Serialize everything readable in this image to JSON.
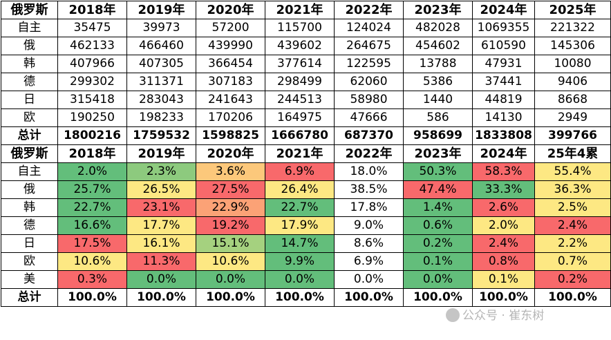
{
  "sales_table": {
    "corner": "俄罗斯",
    "headers": [
      "2018年",
      "2019年",
      "2020年",
      "2021年",
      "2022年",
      "2023年",
      "2024年",
      "2025年"
    ],
    "rows": [
      {
        "label": "自主",
        "values": [
          "35475",
          "39973",
          "57200",
          "115700",
          "124024",
          "482028",
          "1069355",
          "221322"
        ]
      },
      {
        "label": "俄",
        "values": [
          "462133",
          "466460",
          "439990",
          "439602",
          "264675",
          "454602",
          "610590",
          "145306"
        ]
      },
      {
        "label": "韩",
        "values": [
          "407966",
          "407305",
          "366454",
          "377614",
          "122595",
          "13788",
          "47931",
          "10080"
        ]
      },
      {
        "label": "德",
        "values": [
          "299302",
          "311371",
          "307183",
          "298499",
          "62060",
          "5386",
          "37441",
          "9406"
        ]
      },
      {
        "label": "日",
        "values": [
          "315418",
          "283043",
          "241643",
          "244513",
          "58980",
          "1440",
          "44819",
          "8668"
        ]
      },
      {
        "label": "欧",
        "values": [
          "190250",
          "198233",
          "170206",
          "164975",
          "47666",
          "586",
          "14130",
          "2949"
        ]
      }
    ],
    "total": {
      "label": "总计",
      "values": [
        "1800216",
        "1759532",
        "1598825",
        "1666780",
        "687370",
        "958699",
        "1833808",
        "399766"
      ]
    }
  },
  "share_table": {
    "corner": "俄罗斯",
    "headers": [
      "2018年",
      "2019年",
      "2020年",
      "2021年",
      "2022年",
      "2023年",
      "2024年",
      "25年4累"
    ],
    "rows": [
      {
        "label": "自主",
        "values": [
          "2.0%",
          "2.3%",
          "3.6%",
          "6.9%",
          "18.0%",
          "50.3%",
          "58.3%",
          "55.4%"
        ],
        "colors": [
          "#63be7b",
          "#8dca7e",
          "#fcc87b",
          "#f8696b",
          "#ffffff",
          "#63be7b",
          "#f8696b",
          "#fde883"
        ]
      },
      {
        "label": "俄",
        "values": [
          "25.7%",
          "26.5%",
          "27.5%",
          "26.4%",
          "38.5%",
          "47.4%",
          "33.3%",
          "36.3%"
        ],
        "colors": [
          "#63be7b",
          "#fde883",
          "#f8696b",
          "#fde883",
          "#ffffff",
          "#f8696b",
          "#63be7b",
          "#fde883"
        ]
      },
      {
        "label": "韩",
        "values": [
          "22.7%",
          "23.1%",
          "22.9%",
          "22.7%",
          "17.8%",
          "1.4%",
          "2.6%",
          "2.5%"
        ],
        "colors": [
          "#63be7b",
          "#f8696b",
          "#fba276",
          "#63be7b",
          "#ffffff",
          "#63be7b",
          "#f8696b",
          "#fde883"
        ]
      },
      {
        "label": "德",
        "values": [
          "16.6%",
          "17.7%",
          "19.2%",
          "17.9%",
          "9.0%",
          "0.6%",
          "2.0%",
          "2.4%"
        ],
        "colors": [
          "#63be7b",
          "#fde883",
          "#f8696b",
          "#fde883",
          "#ffffff",
          "#63be7b",
          "#fde883",
          "#f8696b"
        ]
      },
      {
        "label": "日",
        "values": [
          "17.5%",
          "16.1%",
          "15.1%",
          "14.7%",
          "8.6%",
          "0.2%",
          "2.4%",
          "2.2%"
        ],
        "colors": [
          "#f8696b",
          "#fde883",
          "#a5d17f",
          "#63be7b",
          "#ffffff",
          "#63be7b",
          "#f8696b",
          "#fde883"
        ]
      },
      {
        "label": "欧",
        "values": [
          "10.6%",
          "11.3%",
          "10.6%",
          "9.9%",
          "6.9%",
          "0.1%",
          "0.8%",
          "0.7%"
        ],
        "colors": [
          "#fde883",
          "#f8696b",
          "#fde883",
          "#63be7b",
          "#ffffff",
          "#63be7b",
          "#f8696b",
          "#fde883"
        ]
      },
      {
        "label": "美",
        "values": [
          "0.3%",
          "0.0%",
          "0.0%",
          "0.0%",
          "0.0%",
          "0.0%",
          "0.1%",
          "0.2%"
        ],
        "colors": [
          "#f8696b",
          "#63be7b",
          "#63be7b",
          "#63be7b",
          "#ffffff",
          "#63be7b",
          "#fde883",
          "#f8696b"
        ]
      }
    ],
    "total": {
      "label": "总计",
      "values": [
        "100.0%",
        "100.0%",
        "100.0%",
        "100.0%",
        "100.0%",
        "100.0%",
        "100.0%",
        "100.0%"
      ]
    }
  },
  "watermark": {
    "text": "公众号 · 崔东树",
    "icon": "wechat-icon"
  }
}
